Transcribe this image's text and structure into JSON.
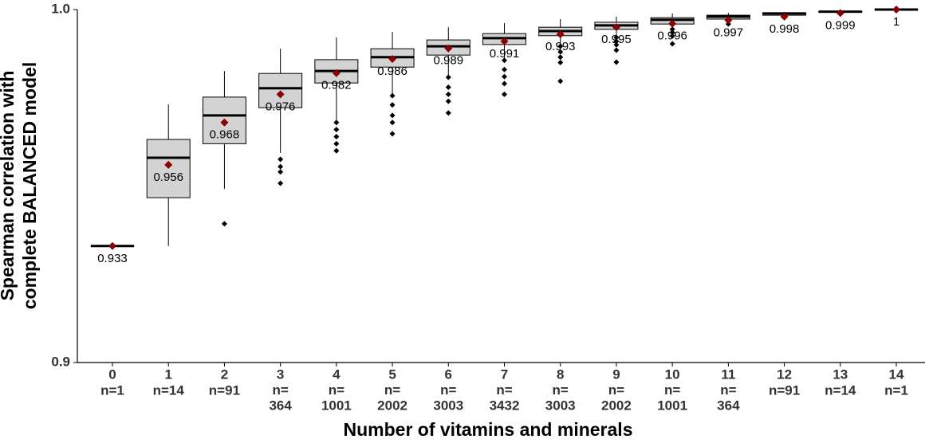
{
  "chart_data": {
    "type": "box",
    "x_label": "Number of vitamins and minerals",
    "y_label": [
      "Spearman correlation with",
      "complete BALANCED model"
    ],
    "categories": [
      "0",
      "1",
      "2",
      "3",
      "4",
      "5",
      "6",
      "7",
      "8",
      "9",
      "10",
      "11",
      "12",
      "13",
      "14"
    ],
    "n_labels": [
      "n=1",
      "n=14",
      "n=91",
      "n=\n364",
      "n=\n1001",
      "n=\n2002",
      "n=\n3003",
      "n=\n3432",
      "n=\n3003",
      "n=\n2002",
      "n=\n1001",
      "n=\n364",
      "n=91",
      "n=14",
      "n=1"
    ],
    "whisker_low": [
      0.933,
      0.933,
      0.9492,
      0.9594,
      0.9688,
      0.976,
      0.9813,
      0.986,
      0.99,
      0.9926,
      0.9948,
      0.9966,
      0.9982,
      0.9991,
      1
    ],
    "q1": [
      0.933,
      0.9467,
      0.962,
      0.9722,
      0.9792,
      0.9837,
      0.9871,
      0.9901,
      0.9926,
      0.9944,
      0.9959,
      0.9973,
      0.9984,
      0.9992,
      1
    ],
    "median": [
      0.933,
      0.958,
      0.97,
      0.9777,
      0.9826,
      0.9865,
      0.9896,
      0.9919,
      0.9939,
      0.9955,
      0.9971,
      0.998,
      0.9989,
      0.9994,
      1
    ],
    "q3": [
      0.933,
      0.9632,
      0.9752,
      0.9819,
      0.9858,
      0.9889,
      0.9914,
      0.9932,
      0.995,
      0.9964,
      0.9977,
      0.9984,
      0.9991,
      0.9995,
      1
    ],
    "whisker_high": [
      0.933,
      0.9731,
      0.9826,
      0.9889,
      0.9921,
      0.9937,
      0.995,
      0.9962,
      0.9973,
      0.998,
      0.9989,
      0.9991,
      0.9993,
      0.9996,
      1
    ],
    "means": [
      0.933,
      0.956,
      0.968,
      0.976,
      0.982,
      0.986,
      0.989,
      0.991,
      0.993,
      0.995,
      0.996,
      0.997,
      0.998,
      0.999,
      1
    ],
    "outliers": [
      [],
      [],
      [
        0.9393
      ],
      [
        0.9576,
        0.9555,
        0.954,
        0.9508
      ],
      [
        0.968,
        0.966,
        0.964,
        0.962,
        0.96
      ],
      [
        0.9756,
        0.973,
        0.97,
        0.968,
        0.9648
      ],
      [
        0.9808,
        0.978,
        0.976,
        0.974,
        0.9707
      ],
      [
        0.9856,
        0.983,
        0.981,
        0.979,
        0.976
      ],
      [
        0.9896,
        0.988,
        0.9865,
        0.985,
        0.9797
      ],
      [
        0.9921,
        0.991,
        0.99,
        0.9885,
        0.9851
      ],
      [
        0.9944,
        0.9935,
        0.9925,
        0.9903
      ],
      [
        0.9959
      ],
      [],
      [],
      []
    ],
    "box_color": "#d3d3d3",
    "mean_color": "#8b0000",
    "ylim": [
      0.9,
      1
    ],
    "yticks": [
      0.9,
      {
        "value": 1,
        "label": "1.0"
      }
    ]
  }
}
